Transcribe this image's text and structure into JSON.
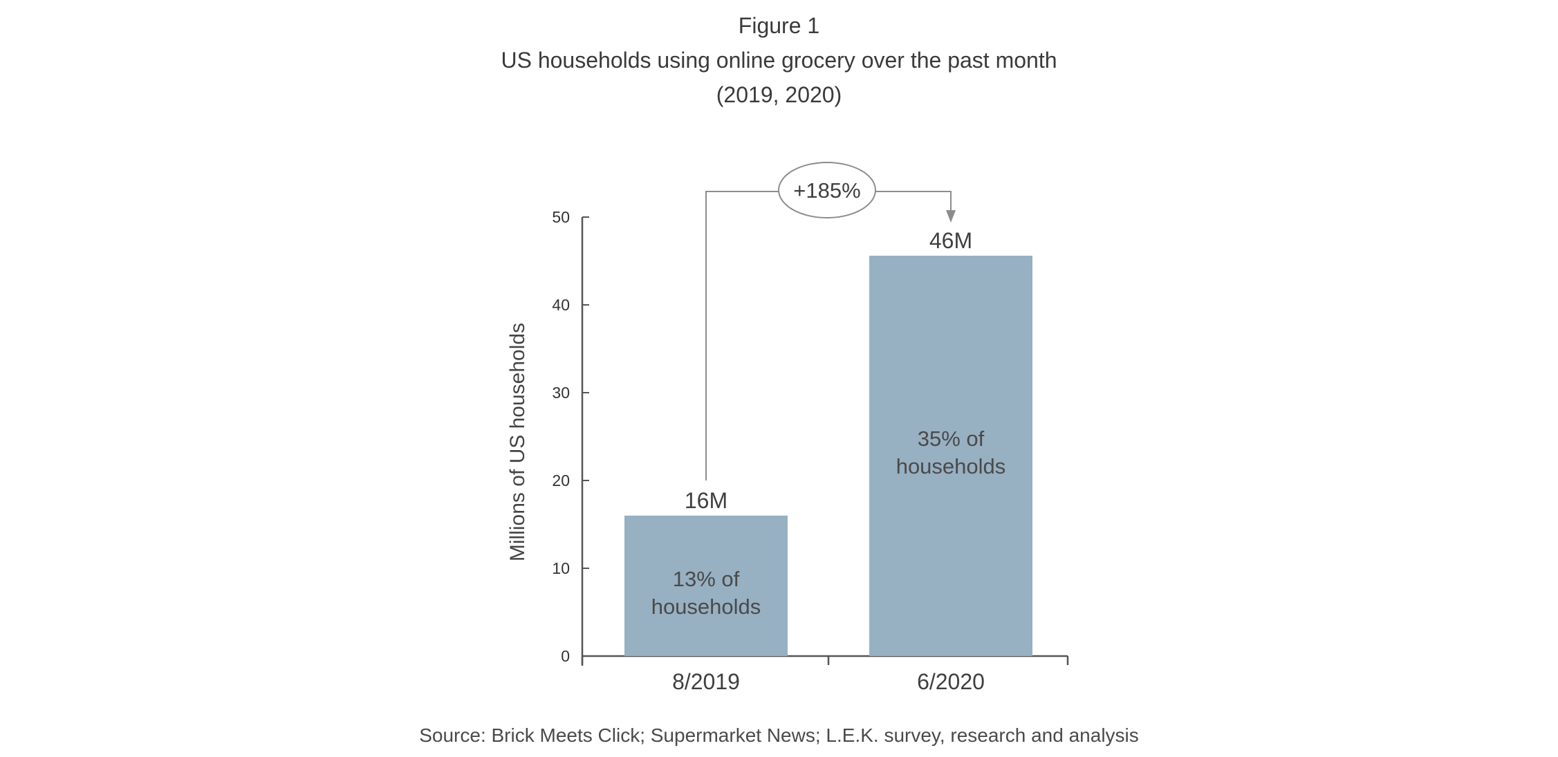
{
  "figure": {
    "label": "Figure 1",
    "title": "US households using online grocery over the past month",
    "subtitle": "(2019, 2020)",
    "source": "Source: Brick Meets Click; Supermarket News; L.E.K. survey, research and analysis"
  },
  "chart_data": {
    "type": "bar",
    "categories": [
      "8/2019",
      "6/2020"
    ],
    "values": [
      16,
      45.6
    ],
    "value_labels": [
      "16M",
      "46M"
    ],
    "inner_labels": [
      [
        "13% of",
        "households"
      ],
      [
        "35% of",
        "households"
      ]
    ],
    "ylabel": "Millions of US households",
    "ylim": [
      0,
      50
    ],
    "yticks": [
      0,
      10,
      20,
      30,
      40,
      50
    ],
    "change_annotation": "+185%",
    "grid": false,
    "legend": "none",
    "colors": {
      "bar": "#97b0c2",
      "axis": "#555555",
      "connector": "#8c8c8c"
    }
  }
}
